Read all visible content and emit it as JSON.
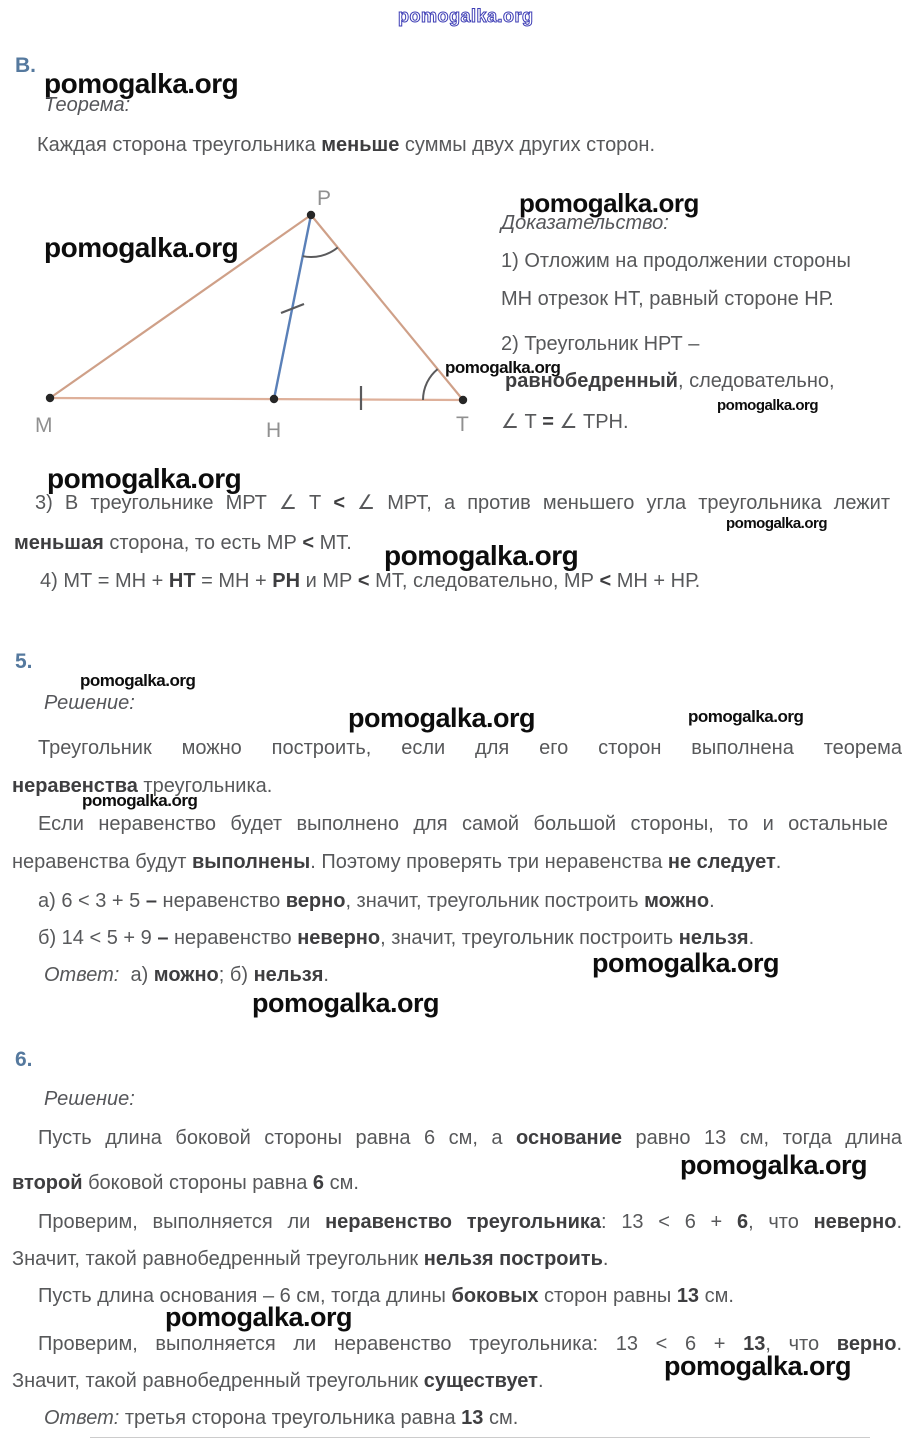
{
  "watermark": "pomogalka.org",
  "colors": {
    "accent_label": "#55799e",
    "body_text": "#57585a",
    "bold_text": "#3e3e40",
    "triangle_side": "#cfa088",
    "triangle_base": "#deb09a",
    "segment_ph": "#5a80b8",
    "angle_mark": "#5a5a5c",
    "vertex_dot": "#262626",
    "vertex_label": "#909090",
    "watermark_black": "#0d0d0d",
    "watermark_outline_blue": "#3d3db5"
  },
  "diagram": {
    "labels": {
      "p": "Р",
      "m": "М",
      "h": "Н",
      "t": "Т"
    }
  },
  "section_b": {
    "label": "В.",
    "heading": "Теорема:",
    "theorem": [
      {
        "t": "Каждая сторона треугольника "
      },
      {
        "t": "меньше",
        "b": 1
      },
      {
        "t": " суммы двух других сторон."
      }
    ]
  },
  "proof": {
    "heading": "Доказательство:",
    "line1": [
      {
        "t": "1) Отложим на продолжении стороны"
      }
    ],
    "line2": [
      {
        "t": "МН отрезок НТ, равный стороне НР."
      }
    ],
    "line3": [
      {
        "t": "2) Треугольник НРТ –"
      }
    ],
    "line4": [
      {
        "t": "равнобедренный",
        "b": 1
      },
      {
        "t": ", следовательно,"
      }
    ],
    "line5": [
      {
        "t": "∠ Т "
      },
      {
        "t": "=",
        "b": 1
      },
      {
        "t": " ∠ ТРН."
      }
    ]
  },
  "item3": {
    "line1": [
      {
        "t": "3) В треугольнике МРТ ∠ Т "
      },
      {
        "t": "<",
        "b": 1
      },
      {
        "t": " ∠ МРТ, а против меньшего угла треугольника лежит"
      }
    ],
    "line2": [
      {
        "t": "меньшая",
        "b": 1
      },
      {
        "t": " сторона, то есть МР "
      },
      {
        "t": "<",
        "b": 1
      },
      {
        "t": " МТ."
      }
    ]
  },
  "item4": {
    "line1": [
      {
        "t": "4) МТ = МН + "
      },
      {
        "t": "НТ",
        "b": 1
      },
      {
        "t": " = МН + "
      },
      {
        "t": "РН",
        "b": 1
      },
      {
        "t": " и МР "
      },
      {
        "t": "<",
        "b": 1
      },
      {
        "t": " МТ, следовательно, МР "
      },
      {
        "t": "<",
        "b": 1
      },
      {
        "t": " МН + НР."
      }
    ]
  },
  "section5": {
    "label": "5.",
    "heading": "Решение:",
    "p1_line1": [
      {
        "t": "Треугольник можно построить, если для его сторон выполнена теорема"
      }
    ],
    "p1_line2": [
      {
        "t": "неравенства",
        "b": 1
      },
      {
        "t": " треугольника."
      }
    ],
    "p2_line1": [
      {
        "t": "Если неравенство будет выполнено для самой большой стороны, то и остальные"
      }
    ],
    "p2_line2": [
      {
        "t": "неравенства будут "
      },
      {
        "t": "выполнены",
        "b": 1
      },
      {
        "t": ". Поэтому проверять три неравенства "
      },
      {
        "t": "не следует",
        "b": 1
      },
      {
        "t": "."
      }
    ],
    "case_a": [
      {
        "t": "а) 6 < 3 + 5 "
      },
      {
        "t": "–",
        "b": 1
      },
      {
        "t": " неравенство "
      },
      {
        "t": "верно",
        "b": 1
      },
      {
        "t": ", значит, треугольник построить "
      },
      {
        "t": "можно",
        "b": 1
      },
      {
        "t": "."
      }
    ],
    "case_b": [
      {
        "t": "б) 14 < 5 + 9 "
      },
      {
        "t": "–",
        "b": 1
      },
      {
        "t": " неравенство "
      },
      {
        "t": "неверно",
        "b": 1
      },
      {
        "t": ", значит, треугольник построить "
      },
      {
        "t": "нельзя",
        "b": 1
      },
      {
        "t": "."
      }
    ],
    "answer": [
      {
        "t": "Ответ:",
        "i": 1
      },
      {
        "t": "  а) "
      },
      {
        "t": "можно",
        "b": 1
      },
      {
        "t": "; б) "
      },
      {
        "t": "нельзя",
        "b": 1
      },
      {
        "t": "."
      }
    ]
  },
  "section6": {
    "label": "6.",
    "heading": "Решение:",
    "l1": [
      {
        "t": "Пусть длина боковой стороны равна 6 см, а "
      },
      {
        "t": "основание",
        "b": 1
      },
      {
        "t": " равно 13 см, тогда длина"
      }
    ],
    "l2": [
      {
        "t": "второй",
        "b": 1
      },
      {
        "t": " боковой стороны равна "
      },
      {
        "t": "6",
        "b": 1
      },
      {
        "t": " см."
      }
    ],
    "l3": [
      {
        "t": "Проверим, выполняется ли "
      },
      {
        "t": "неравенство треугольника",
        "b": 1
      },
      {
        "t": ": 13 < 6 + "
      },
      {
        "t": "6",
        "b": 1
      },
      {
        "t": ", что "
      },
      {
        "t": "неверно",
        "b": 1
      },
      {
        "t": "."
      }
    ],
    "l4": [
      {
        "t": "Значит, такой равнобедренный треугольник "
      },
      {
        "t": "нельзя построить",
        "b": 1
      },
      {
        "t": "."
      }
    ],
    "l5": [
      {
        "t": "Пусть длина основания – 6 см, тогда длины "
      },
      {
        "t": "боковых",
        "b": 1
      },
      {
        "t": " сторон равны "
      },
      {
        "t": "13",
        "b": 1
      },
      {
        "t": " см."
      }
    ],
    "l6": [
      {
        "t": "Проверим, выполняется ли неравенство треугольника: 13 < 6 + "
      },
      {
        "t": "13",
        "b": 1
      },
      {
        "t": ", что "
      },
      {
        "t": "верно",
        "b": 1
      },
      {
        "t": "."
      }
    ],
    "l7": [
      {
        "t": "Значит, такой равнобедренный треугольник "
      },
      {
        "t": "существует",
        "b": 1
      },
      {
        "t": "."
      }
    ],
    "answer": [
      {
        "t": "Ответ:",
        "i": 1
      },
      {
        "t": " третья сторона треугольника равна "
      },
      {
        "t": "13",
        "b": 1
      },
      {
        "t": " см."
      }
    ]
  }
}
